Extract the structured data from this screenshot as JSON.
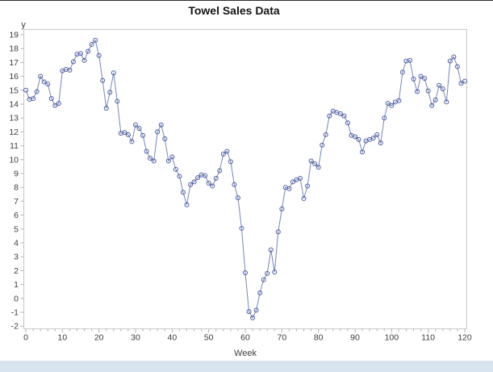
{
  "window": {
    "top_border_color": "#2e2e2e",
    "footer_band_color": "#d9e4f1",
    "background_color": "#ffffff"
  },
  "chart_data": {
    "type": "line",
    "title": "Towel Sales Data",
    "xlabel": "Week",
    "ylabel": "y",
    "xlim": [
      0,
      120
    ],
    "ylim": [
      -2,
      19
    ],
    "x_major_tick_step": 10,
    "x_minor_tick_step": 2,
    "y_tick_step": 1,
    "x_tick_labels": [
      "0",
      "10",
      "20",
      "30",
      "40",
      "50",
      "60",
      "70",
      "80",
      "90",
      "100",
      "110",
      "120"
    ],
    "y_tick_labels": [
      "-2",
      "-1",
      "0",
      "1",
      "2",
      "3",
      "4",
      "5",
      "6",
      "7",
      "8",
      "9",
      "10",
      "11",
      "12",
      "13",
      "14",
      "15",
      "16",
      "17",
      "18",
      "19"
    ],
    "grid": false,
    "legend": "none",
    "frame_color": "#c9c9c9",
    "tick_color": "#b4b4b4",
    "tick_label_color": "#3d3d3d",
    "series": [
      {
        "name": "y",
        "marker": "open-circle",
        "line_color": "#7887b3",
        "marker_color": "#4e5c9e",
        "x_start": 0,
        "x_step": 1,
        "values": [
          15,
          14.35,
          14.4,
          14.9,
          16,
          15.6,
          15.45,
          14.4,
          13.9,
          14.05,
          16.4,
          16.5,
          16.45,
          17.05,
          17.6,
          17.65,
          17.15,
          17.8,
          18.3,
          18.6,
          17.5,
          15.7,
          13.7,
          14.85,
          16.25,
          14.2,
          11.9,
          11.95,
          11.8,
          11.3,
          12.5,
          12.25,
          11.75,
          10.6,
          10.1,
          9.9,
          12,
          12.5,
          11.5,
          9.9,
          10.2,
          9.3,
          8.8,
          7.65,
          6.75,
          8.2,
          8.4,
          8.7,
          8.9,
          8.85,
          8.3,
          8.1,
          8.65,
          9.2,
          10.4,
          10.6,
          9.85,
          8.2,
          7.25,
          5.05,
          1.85,
          -0.95,
          -1.4,
          -0.85,
          0.4,
          1.35,
          1.8,
          3.5,
          1.9,
          4.8,
          6.45,
          8,
          7.9,
          8.4,
          8.55,
          8.65,
          7.2,
          8.1,
          9.9,
          9.7,
          9.45,
          11.05,
          11.8,
          13.15,
          13.5,
          13.4,
          13.3,
          13.15,
          12.65,
          11.75,
          11.65,
          11.45,
          10.55,
          11.35,
          11.45,
          11.55,
          11.8,
          11.2,
          13,
          14.05,
          13.9,
          14.15,
          14.25,
          16.3,
          17.1,
          17.15,
          15.8,
          14.9,
          16,
          15.85,
          14.95,
          13.9,
          14.3,
          15.35,
          15.1,
          14.15,
          17.1,
          17.4,
          16.7,
          15.5,
          15.65
        ]
      }
    ]
  }
}
